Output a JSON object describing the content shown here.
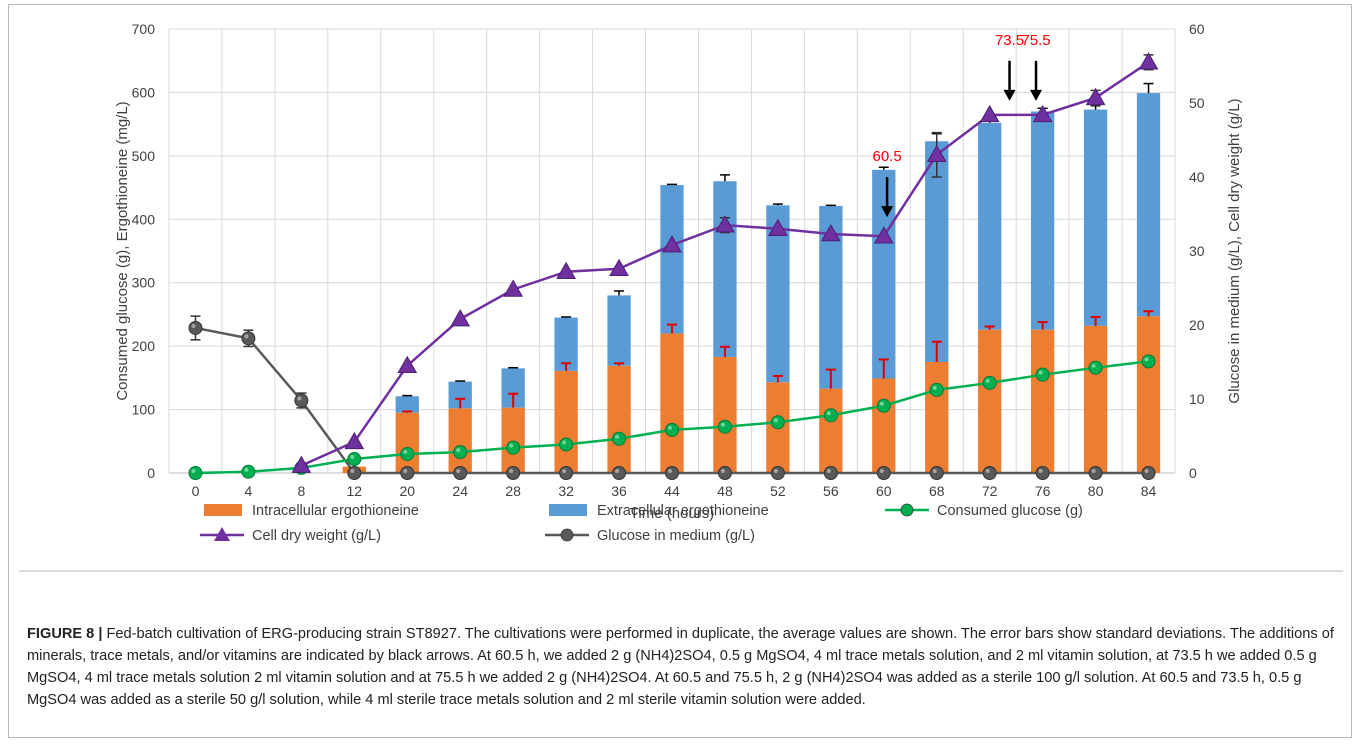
{
  "chart_data": {
    "type": "bar",
    "categories": [
      "0",
      "4",
      "8",
      "12",
      "20",
      "24",
      "28",
      "32",
      "36",
      "44",
      "48",
      "52",
      "56",
      "60",
      "68",
      "72",
      "76",
      "80",
      "84"
    ],
    "xlabel": "Time (hours)",
    "ylabel_left": "Consumed glucose (g), Ergothioneine (mg/L)",
    "ylabel_right": "Glucose in medium (g/L), Cell dry weight (g/L)",
    "ylim_left": [
      0,
      700
    ],
    "ylim_right": [
      0,
      60
    ],
    "yticks_left": [
      "0",
      "100",
      "200",
      "300",
      "400",
      "500",
      "600",
      "700"
    ],
    "yticks_right": [
      "0",
      "10",
      "20",
      "30",
      "40",
      "50",
      "60"
    ],
    "grid": true,
    "legend_position": "bottom",
    "series": [
      {
        "name": "Intracellular ergothioneine",
        "kind": "bar",
        "axis": "left",
        "color": "#ED7D31",
        "values": [
          0,
          0,
          0,
          10,
          95,
          102,
          103,
          161,
          169,
          220,
          183,
          143,
          133,
          149,
          175,
          226,
          226,
          232,
          247
        ],
        "errors": [
          0,
          0,
          0,
          0,
          2,
          15,
          22,
          12,
          4,
          14,
          16,
          10,
          30,
          30,
          32,
          5,
          12,
          14,
          8
        ]
      },
      {
        "name": "Extracellular ergothioneine",
        "kind": "bar",
        "axis": "left",
        "color": "#5B9BD5",
        "values": [
          0,
          0,
          0,
          0,
          26,
          42,
          62,
          84,
          111,
          234,
          277,
          279,
          288,
          329,
          348,
          326,
          344,
          341,
          352
        ],
        "errors": [
          0,
          0,
          0,
          0,
          1,
          1,
          1,
          1,
          7,
          1,
          10,
          2,
          1,
          4,
          12,
          12,
          5,
          6,
          15
        ]
      },
      {
        "name": "Consumed glucose (g)",
        "kind": "line",
        "axis": "left",
        "color": "#00B050",
        "marker": "circle",
        "values": [
          0,
          2,
          8,
          22,
          30,
          33,
          40,
          45,
          54,
          68,
          73,
          80,
          91,
          106,
          131,
          142,
          155,
          166,
          176
        ]
      },
      {
        "name": "Cell dry weight (g/L)",
        "kind": "line",
        "axis": "right",
        "color": "#7030A0",
        "marker": "triangle",
        "values": [
          null,
          null,
          1,
          4.2,
          14.5,
          20.8,
          24.8,
          27.2,
          27.6,
          30.8,
          33.5,
          33,
          32.3,
          32,
          43,
          48.4,
          48.4,
          50.7,
          55.5
        ],
        "errors": [
          0,
          0,
          0,
          0,
          0,
          0,
          0,
          0,
          0,
          0,
          1,
          0,
          0,
          0,
          3,
          0,
          0,
          1,
          1
        ]
      },
      {
        "name": "Glucose in medium (g/L)",
        "kind": "line",
        "axis": "right",
        "color": "#595959",
        "marker": "circle",
        "values": [
          19.6,
          18.2,
          9.8,
          0,
          0,
          0,
          0,
          0,
          0,
          0,
          0,
          0,
          0,
          0,
          0,
          0,
          0,
          0,
          0
        ],
        "errors": [
          1.6,
          1.1,
          1,
          0,
          0,
          0,
          0,
          0,
          0,
          0,
          0,
          0,
          0,
          0,
          0,
          0,
          0,
          0,
          0
        ]
      }
    ],
    "annotations": [
      {
        "text": "60.5",
        "x": 60.5,
        "color": "#FF0000"
      },
      {
        "text": "73.5",
        "x": 73.5,
        "color": "#FF0000"
      },
      {
        "text": "75.5",
        "x": 75.5,
        "color": "#FF0000"
      }
    ]
  },
  "caption": {
    "label": "FIGURE 8 |",
    "text": "Fed-batch cultivation of ERG-producing strain ST8927. The cultivations were performed in duplicate, the average values are shown. The error bars show standard deviations. The additions of minerals, trace metals, and/or vitamins are indicated by black arrows. At 60.5 h, we added 2 g (NH4)2SO4, 0.5 g MgSO4, 4 ml trace metals solution, and 2 ml vitamin solution, at 73.5 h we added 0.5 g MgSO4, 4 ml trace metals solution 2 ml vitamin solution and at 75.5 h we added 2 g (NH4)2SO4. At 60.5 and 75.5 h, 2 g (NH4)2SO4 was added as a sterile 100 g/l solution. At 60.5 and 73.5 h, 0.5 g MgSO4 was added as a sterile 50 g/l solution, while 4 ml sterile trace metals solution and 2 ml sterile vitamin solution were added."
  }
}
